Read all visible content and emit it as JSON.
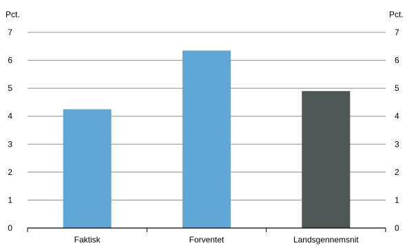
{
  "chart_data": {
    "type": "bar",
    "y_unit_left": "Pct.",
    "y_unit_right": "Pct.",
    "categories": [
      "Faktisk",
      "Forventet",
      "Landsgennemsnit"
    ],
    "values": [
      4.25,
      6.35,
      4.9
    ],
    "bar_colors": [
      "#5fa8d6",
      "#5fa8d6",
      "#4f5656"
    ],
    "ylim": [
      0,
      7
    ],
    "yticks": [
      0,
      1,
      2,
      3,
      4,
      5,
      6,
      7
    ],
    "grid": true,
    "grid_color": "#8c8c8c",
    "axis_color": "#000000"
  }
}
